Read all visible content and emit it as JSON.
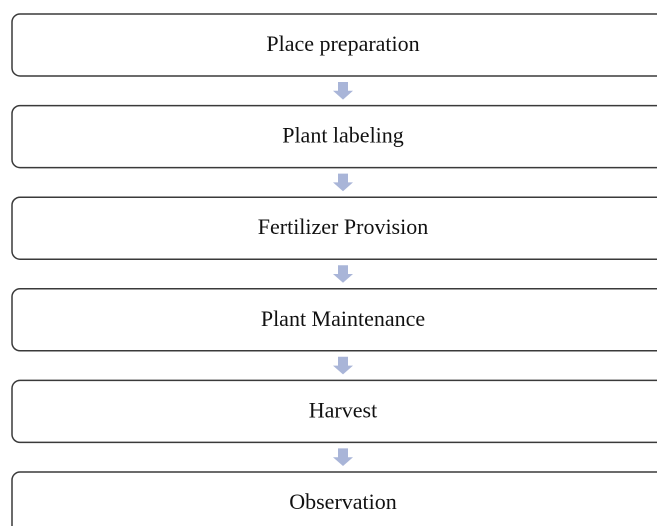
{
  "nodes": [
    {
      "label": "Place preparation"
    },
    {
      "label": "Plant labeling"
    },
    {
      "label": "Fertilizer Provision"
    },
    {
      "label": "Plant Maintenance"
    },
    {
      "label": "Harvest"
    },
    {
      "label": "Observation"
    }
  ]
}
